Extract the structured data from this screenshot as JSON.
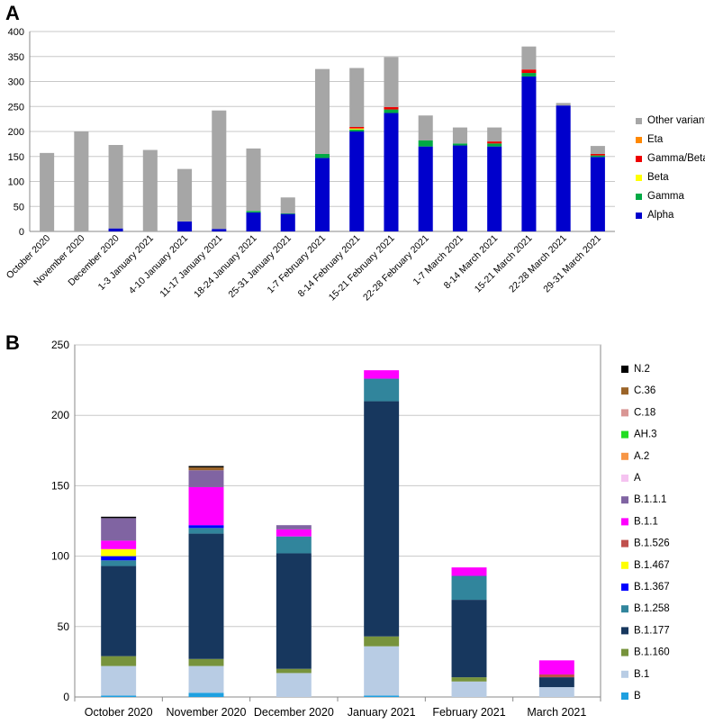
{
  "panels": {
    "a": "A",
    "b": "B"
  },
  "chart_data": [
    {
      "type": "bar",
      "stacked": true,
      "title": "",
      "xlabel": "",
      "ylabel": "",
      "ylim": [
        0,
        400
      ],
      "yticks": [
        0,
        50,
        100,
        150,
        200,
        250,
        300,
        350,
        400
      ],
      "legend_position": "right",
      "categories": [
        "October 2020",
        "November 2020",
        "December 2020",
        "1-3 January 2021",
        "4-10 January  2021",
        "11-17 January  2021",
        "18-24 January 2021",
        "25-31 January 2021",
        "1-7 February 2021",
        "8-14 February 2021",
        "15-21 February 2021",
        "22-28 February 2021",
        "1-7 March 2021",
        "8-14 March 2021",
        "15-21 March 2021",
        "22-28 March 2021",
        "29-31 March 2021"
      ],
      "series": [
        {
          "name": "Alpha",
          "color": "#0000cc",
          "values": [
            0,
            0,
            6,
            0,
            20,
            5,
            38,
            35,
            147,
            200,
            237,
            170,
            172,
            170,
            310,
            252,
            149
          ]
        },
        {
          "name": "Gamma",
          "color": "#00aa44",
          "values": [
            0,
            0,
            0,
            0,
            0,
            0,
            3,
            1,
            8,
            4,
            7,
            12,
            4,
            6,
            7,
            0,
            3
          ]
        },
        {
          "name": "Beta",
          "color": "#ffff00",
          "values": [
            0,
            0,
            0,
            0,
            0,
            0,
            0,
            0,
            0,
            2,
            0,
            0,
            0,
            0,
            0,
            0,
            0
          ]
        },
        {
          "name": "Gamma/Beta",
          "color": "#ee0000",
          "values": [
            0,
            0,
            0,
            0,
            0,
            0,
            0,
            0,
            0,
            3,
            5,
            0,
            0,
            4,
            7,
            0,
            3
          ]
        },
        {
          "name": "Eta",
          "color": "#ff8800",
          "values": [
            0,
            0,
            0,
            0,
            0,
            0,
            0,
            0,
            0,
            0,
            0,
            0,
            0,
            0,
            0,
            0,
            0
          ]
        },
        {
          "name": "Other variants",
          "color": "#a6a6a6",
          "values": [
            157,
            200,
            167,
            163,
            105,
            237,
            125,
            32,
            170,
            118,
            100,
            50,
            32,
            28,
            46,
            5,
            16
          ]
        }
      ]
    },
    {
      "type": "bar",
      "stacked": true,
      "title": "",
      "xlabel": "",
      "ylabel": "",
      "ylim": [
        0,
        250
      ],
      "yticks": [
        0,
        50,
        100,
        150,
        200,
        250
      ],
      "legend_position": "right",
      "categories": [
        "October 2020",
        "November 2020",
        "December 2020",
        "January 2021",
        "February 2021",
        "March 2021"
      ],
      "series": [
        {
          "name": "B",
          "color": "#1ea0e0",
          "values": [
            1,
            3,
            0,
            1,
            0,
            0
          ]
        },
        {
          "name": "B.1",
          "color": "#b8cce4",
          "values": [
            21,
            19,
            17,
            35,
            11,
            7
          ]
        },
        {
          "name": "B.1.160",
          "color": "#77933c",
          "values": [
            7,
            5,
            3,
            7,
            3,
            0
          ]
        },
        {
          "name": "B.1.177",
          "color": "#17375e",
          "values": [
            64,
            89,
            82,
            167,
            55,
            7
          ]
        },
        {
          "name": "B.1.258",
          "color": "#31859c",
          "values": [
            4,
            4,
            12,
            16,
            17,
            0
          ]
        },
        {
          "name": "B.1.367",
          "color": "#0000ff",
          "values": [
            3,
            2,
            0,
            0,
            0,
            0
          ]
        },
        {
          "name": "B.1.467",
          "color": "#ffff00",
          "values": [
            5,
            0,
            0,
            0,
            0,
            0
          ]
        },
        {
          "name": "B.1.526",
          "color": "#c0504d",
          "values": [
            0,
            0,
            0,
            0,
            0,
            2
          ]
        },
        {
          "name": "B.1.1",
          "color": "#ff00ff",
          "values": [
            6,
            27,
            5,
            6,
            6,
            10
          ]
        },
        {
          "name": "B.1.1.1",
          "color": "#8064a2",
          "values": [
            16,
            12,
            3,
            0,
            0,
            0
          ]
        },
        {
          "name": "A",
          "color": "#f5c3f0",
          "values": [
            0,
            0,
            0,
            0,
            0,
            0
          ]
        },
        {
          "name": "A.2",
          "color": "#f79646",
          "values": [
            0,
            0,
            0,
            0,
            0,
            0
          ]
        },
        {
          "name": "AH.3",
          "color": "#22dd22",
          "values": [
            0,
            0,
            0,
            0,
            0,
            0
          ]
        },
        {
          "name": "C.18",
          "color": "#d99694",
          "values": [
            0,
            0,
            0,
            0,
            0,
            0
          ]
        },
        {
          "name": "C.36",
          "color": "#9b6428",
          "values": [
            0,
            2,
            0,
            0,
            0,
            0
          ]
        },
        {
          "name": "N.2",
          "color": "#000000",
          "values": [
            1,
            1,
            0,
            0,
            0,
            0
          ]
        }
      ]
    }
  ]
}
